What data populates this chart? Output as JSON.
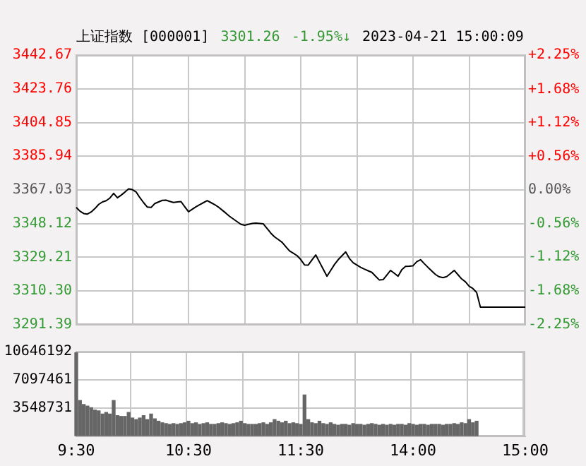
{
  "chart_data": [
    {
      "type": "line",
      "title": "上证指数 [000001]",
      "annotations": [
        "3301.26",
        "-1.95%↓",
        "2023-04-21 15:00:09"
      ],
      "categories": [
        null,
        null,
        null,
        null,
        null,
        null,
        null,
        null,
        null,
        null,
        null,
        null,
        null,
        null,
        null,
        null,
        null,
        null,
        null,
        null,
        null,
        null,
        null,
        null,
        null,
        null,
        null,
        null,
        null,
        null,
        null,
        null,
        null,
        null,
        null,
        null,
        null,
        null,
        null,
        null,
        null,
        null,
        null,
        null,
        null,
        null,
        null,
        null,
        null,
        null,
        null,
        null,
        null,
        null,
        null,
        null,
        null,
        null,
        null,
        null,
        null,
        null,
        null,
        null,
        null,
        null,
        null,
        null,
        null,
        null,
        null,
        null,
        null,
        null,
        null,
        null,
        null,
        null,
        null,
        null,
        null,
        null,
        null,
        null,
        null,
        null,
        null,
        null,
        null,
        null,
        null,
        null,
        null,
        null,
        null,
        null,
        null,
        null,
        null,
        null,
        null,
        null,
        null,
        null,
        null,
        null,
        null,
        null,
        null,
        null,
        null,
        null,
        null,
        null,
        null,
        null,
        null,
        null,
        null,
        null,
        null
      ],
      "series": [
        {
          "color": "#000000",
          "values": [
            3357.2,
            3355.1,
            3353.8,
            3353.5,
            3354.7,
            3356.6,
            3358.9,
            3360.3,
            3361.0,
            3362.5,
            3365.1,
            3362.6,
            3364.1,
            3365.8,
            3367.6,
            3367.2,
            3365.9,
            3362.7,
            3359.9,
            3357.4,
            3357.2,
            3359.4,
            3360.3,
            3361.2,
            3361.3,
            3360.6,
            3360.0,
            3360.3,
            3360.5,
            3357.6,
            3354.8,
            3356.2,
            3357.6,
            3358.8,
            3359.9,
            3361.0,
            3359.9,
            3358.8,
            3357.4,
            3355.7,
            3354.0,
            3352.2,
            3350.7,
            3349.2,
            3347.7,
            3347.2,
            3347.7,
            3348.2,
            3348.4,
            3348.2,
            3348.0,
            3345.4,
            3342.8,
            3340.7,
            3339.2,
            3337.7,
            3335.2,
            3332.8,
            3331.5,
            3330.2,
            3328.0,
            3325.0,
            3324.9,
            3327.8,
            3330.6,
            3326.6,
            3322.6,
            3318.6,
            3321.9,
            3325.2,
            3327.9,
            3330.1,
            3332.3,
            3328.6,
            3326.2,
            3324.9,
            3323.6,
            3322.6,
            3321.7,
            3320.8,
            3318.6,
            3316.5,
            3316.7,
            3319.3,
            3321.9,
            3320.3,
            3318.6,
            3322.3,
            3324.2,
            3324.3,
            3324.5,
            3326.8,
            3327.9,
            3325.7,
            3323.6,
            3321.6,
            3319.6,
            3318.3,
            3317.8,
            3318.4,
            3320.1,
            3321.9,
            3319.5,
            3317.1,
            3315.5,
            3313.0,
            3311.7,
            3309.5,
            3301.3,
            3301.3,
            3301.3,
            3301.3,
            3301.3,
            3301.3,
            3301.3,
            3301.3,
            3301.3,
            3301.3,
            3301.3,
            3301.3,
            3301.3
          ]
        }
      ],
      "ylim": [
        3291.39,
        3442.67
      ],
      "yticks": [
        3291.39,
        {
          "value": 3310.3,
          "label": "3310.30"
        },
        3329.21,
        3348.12,
        3367.03,
        3385.94,
        3404.85,
        3423.76,
        3442.67
      ],
      "y2lim": [
        -2.25,
        2.25
      ],
      "y2ticks": [
        {
          "value": -2.25,
          "label": "-2.25%"
        },
        {
          "value": -1.68,
          "label": "-1.68%"
        },
        {
          "value": -1.12,
          "label": "-1.12%"
        },
        {
          "value": -0.56,
          "label": "-0.56%"
        },
        {
          "value": 0,
          "label": "0.00%"
        },
        {
          "value": 0.56,
          "label": "+0.56%"
        },
        {
          "value": 1.12,
          "label": "+1.12%"
        },
        {
          "value": 1.68,
          "label": "+1.68%"
        },
        {
          "value": 2.25,
          "label": "+2.25%"
        }
      ],
      "grid": true,
      "tick_labels": "y",
      "line_style": "solid"
    },
    {
      "type": "bar",
      "categories": [
        "9:30",
        null,
        null,
        null,
        null,
        null,
        null,
        null,
        null,
        null,
        null,
        null,
        null,
        null,
        null,
        null,
        null,
        null,
        null,
        null,
        null,
        null,
        null,
        null,
        null,
        null,
        null,
        null,
        null,
        null,
        "10:30",
        null,
        null,
        null,
        null,
        null,
        null,
        null,
        null,
        null,
        null,
        null,
        null,
        null,
        null,
        null,
        null,
        null,
        null,
        null,
        null,
        null,
        null,
        null,
        null,
        null,
        null,
        null,
        null,
        null,
        "11:30",
        null,
        null,
        null,
        null,
        null,
        null,
        null,
        null,
        null,
        null,
        null,
        null,
        null,
        null,
        null,
        null,
        null,
        null,
        null,
        null,
        null,
        null,
        null,
        null,
        null,
        null,
        null,
        null,
        null,
        "14:00",
        null,
        null,
        null,
        null,
        null,
        null,
        null,
        null,
        null,
        null,
        null,
        null,
        null,
        null,
        null,
        null,
        null,
        null,
        null,
        null,
        null,
        null,
        null,
        null,
        null,
        null,
        null,
        null,
        null,
        "15:00"
      ],
      "series": [
        {
          "color": "#666666",
          "values": [
            10500000,
            4500000,
            4000000,
            3800000,
            3600000,
            3300000,
            3200000,
            2800000,
            3000000,
            2800000,
            4500000,
            2600000,
            2500000,
            2500000,
            3000000,
            2300000,
            2100000,
            2300000,
            2600000,
            2100000,
            2800000,
            2200000,
            1900000,
            1700000,
            1600000,
            1500000,
            1600000,
            1500000,
            1600000,
            1700000,
            1900000,
            1600000,
            1700000,
            1500000,
            1600000,
            1700000,
            1500000,
            1500000,
            1600000,
            1700000,
            1600000,
            1500000,
            1600000,
            1700000,
            1900000,
            1600000,
            1500000,
            1500000,
            1500000,
            1600000,
            1700000,
            1500000,
            1700000,
            2100000,
            1900000,
            1700000,
            1900000,
            1600000,
            1700000,
            1600000,
            1500000,
            5200000,
            2100000,
            1700000,
            1600000,
            1900000,
            1600000,
            1500000,
            1700000,
            1500000,
            1400000,
            1500000,
            1500000,
            1400000,
            1600000,
            1500000,
            1500000,
            1400000,
            1500000,
            1600000,
            1500000,
            1400000,
            1500000,
            1400000,
            1500000,
            1400000,
            1500000,
            1500000,
            1400000,
            1600000,
            1500000,
            1400000,
            1500000,
            1500000,
            1400000,
            1500000,
            1500000,
            1500000,
            1400000,
            1500000,
            1500000,
            1600000,
            1500000,
            1700000,
            1600000,
            2100000,
            1700000,
            1900000,
            null,
            null,
            null,
            null,
            null,
            null,
            null,
            null,
            null,
            null,
            null,
            null,
            null
          ]
        }
      ],
      "ylim": [
        0,
        10646192
      ],
      "yticks": [
        {
          "value": 0,
          "label": null
        },
        3548731,
        7097461,
        10646192
      ],
      "grid": true
    }
  ]
}
